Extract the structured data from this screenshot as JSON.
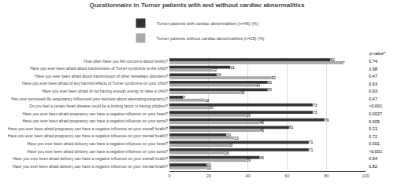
{
  "chart_data": {
    "type": "bar",
    "orientation": "horizontal",
    "title": "Questionnaire in Turner patients with and without cardiac abnormalities",
    "categories": [
      "How often have you felt concerns about fertility?",
      "Have you ever been afraid about transmission of Turner syndrome to the child?",
      "Have you ever been afraid about transmission of other hereditary disorders?",
      "Have you ever been afraid of any harmful effects of Turner syndrome on your child?",
      "Have you ever been afraid of not having enough energy to raise a child?",
      "Has your perceived life expectancy influenced your decision about attempting pregnancy?",
      "Do you feel a certain heart disease could be a limiting factor in having children?",
      "Have you ever been afraid pregnancy can have a negative influence on your heart?",
      "Have you ever been afraid pregnancy can have a negative influence on your aorta?",
      "Have you ever been afraid pregnancy can have a negative influence on your overall health?",
      "Have you ever been afraid pregnancy can have a negative influence on your mental health?",
      "Have you ever been afraid delivery can have a negative influence on your heart?",
      "Have you ever been afraid delivery can have a negative influence on your aorta?",
      "Have you ever been afraid delivery can have a negative influence on your overall health?",
      "Have you ever been afraid delivery can have a negative influence on your mental health?"
    ],
    "series": [
      {
        "name": "Turner patients with cardiac abnormalities (n=46) (%)",
        "color": "#333333",
        "values": [
          82,
          31,
          24,
          50,
          50,
          7,
          73,
          73,
          79,
          61,
          29,
          71,
          71,
          46,
          19
        ]
      },
      {
        "name": "Turner patients without cardiac abnormalities (n=28) (%)",
        "color": "#aaaaaa",
        "values": [
          87,
          22,
          52,
          44,
          36,
          18,
          20,
          39,
          46,
          46,
          33,
          30,
          28,
          39,
          19
        ]
      }
    ],
    "p_values_title": "p value*",
    "p_values": [
      "0.74",
      "0.98",
      "0.47",
      "0.63",
      "0.93",
      "0.47",
      "<0.001",
      "0.0027",
      "0.005",
      "0.21",
      "0.72",
      "0.001",
      "<0.001",
      "0.54",
      "0.82"
    ],
    "xlim": [
      0,
      100
    ],
    "xticks": [
      0,
      20,
      40,
      60,
      80,
      100
    ],
    "grid": true,
    "data_labels": true,
    "legend": "upper center"
  }
}
